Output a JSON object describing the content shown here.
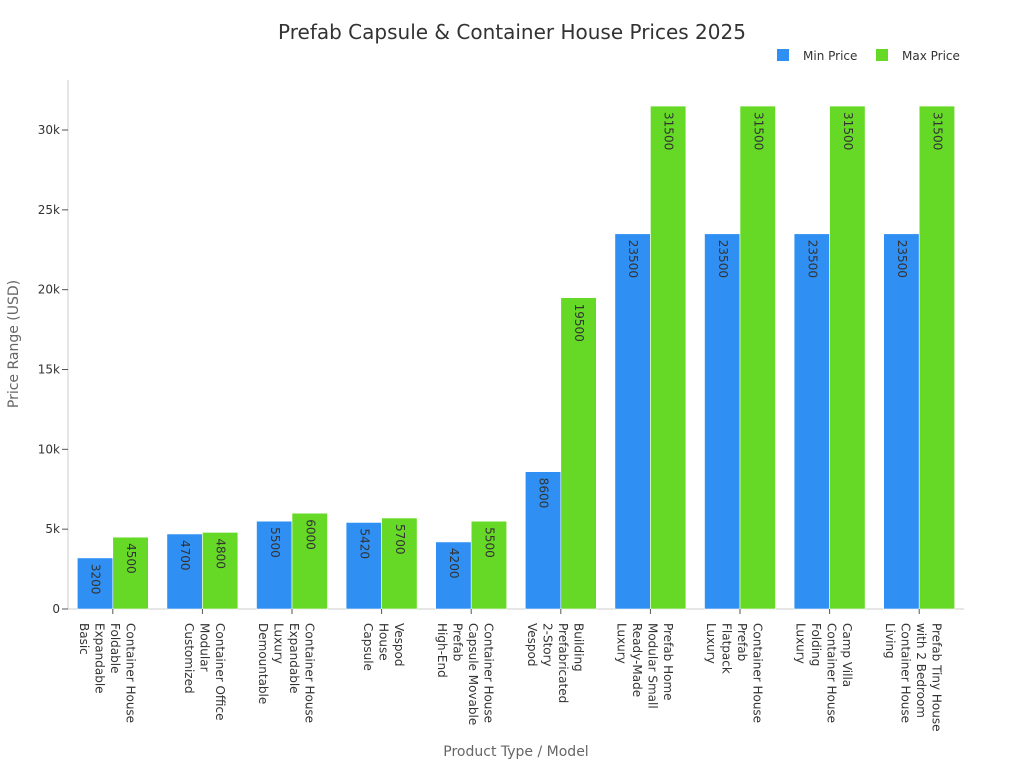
{
  "chart_data": {
    "type": "bar",
    "title": "Prefab Capsule & Container House Prices 2025",
    "xlabel": "Product Type / Model",
    "ylabel": "Price Range (USD)",
    "ylim": [
      0,
      33000
    ],
    "yticks": [
      0,
      5000,
      10000,
      15000,
      20000,
      25000,
      30000
    ],
    "ytick_labels": [
      "0",
      "5k",
      "10k",
      "15k",
      "20k",
      "25k",
      "30k"
    ],
    "legend_position": "top-right",
    "categories": [
      [
        "Basic",
        "Expandable",
        "Foldable",
        "Container House"
      ],
      [
        "Customized",
        "Modular",
        "Container Office"
      ],
      [
        "Demountable",
        "Luxury",
        "Expandable",
        "Container House"
      ],
      [
        "Capsule",
        "House",
        "Vespod"
      ],
      [
        "High-End",
        "Prefab",
        "Capsule Movable",
        "Container House"
      ],
      [
        "Vespod",
        "2-Story",
        "Prefabricated",
        "Building"
      ],
      [
        "Luxury",
        "Ready-Made",
        "Modular Small",
        "Prefab Home"
      ],
      [
        "Luxury",
        "Flatpack",
        "Prefab",
        "Container House"
      ],
      [
        "Luxury",
        "Folding",
        "Container House",
        "Camp Villa"
      ],
      [
        "Living",
        "Container House",
        "with 2 Bedroom",
        "Prefab Tiny House"
      ]
    ],
    "series": [
      {
        "name": "Min Price",
        "color": "#2f8ff2",
        "values": [
          3200,
          4700,
          5500,
          5420,
          4200,
          8600,
          23500,
          23500,
          23500,
          23500
        ]
      },
      {
        "name": "Max Price",
        "color": "#66d926",
        "values": [
          4500,
          4800,
          6000,
          5700,
          5500,
          19500,
          31500,
          31500,
          31500,
          31500
        ]
      }
    ]
  }
}
